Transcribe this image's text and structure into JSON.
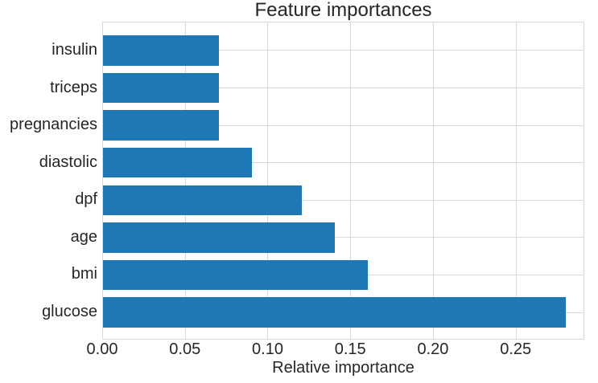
{
  "chart_data": {
    "type": "bar",
    "orientation": "horizontal",
    "title": "Feature importances",
    "xlabel": "Relative importance",
    "ylabel": "",
    "categories": [
      "insulin",
      "triceps",
      "pregnancies",
      "diastolic",
      "dpf",
      "age",
      "bmi",
      "glucose"
    ],
    "values": [
      0.07,
      0.07,
      0.07,
      0.09,
      0.12,
      0.14,
      0.16,
      0.28
    ],
    "xticks": [
      0,
      0.05,
      0.1,
      0.15,
      0.2,
      0.25
    ],
    "xtick_labels": [
      "0.00",
      "0.05",
      "0.10",
      "0.15",
      "0.20",
      "0.25"
    ],
    "xlim": [
      0,
      0.2915
    ],
    "grid": true,
    "legend": false,
    "colors": {
      "bar": "#1f77b4",
      "grid": "#d9d9d9",
      "text": "#262626",
      "background": "#ffffff"
    }
  }
}
